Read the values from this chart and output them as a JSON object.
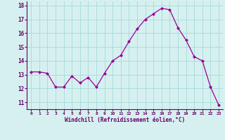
{
  "x": [
    0,
    1,
    2,
    3,
    4,
    5,
    6,
    7,
    8,
    9,
    10,
    11,
    12,
    13,
    14,
    15,
    16,
    17,
    18,
    19,
    20,
    21,
    22,
    23
  ],
  "y": [
    13.2,
    13.2,
    13.1,
    12.1,
    12.1,
    12.9,
    12.4,
    12.8,
    12.1,
    13.1,
    14.0,
    14.4,
    15.4,
    16.3,
    17.0,
    17.4,
    17.8,
    17.7,
    16.4,
    15.5,
    14.3,
    14.0,
    12.1,
    10.8
  ],
  "line_color": "#990099",
  "marker": "D",
  "marker_size": 2,
  "bg_color": "#d6f0f0",
  "grid_color": "#aadddd",
  "xlabel": "Windchill (Refroidissement éolien,°C)",
  "xlabel_color": "#660066",
  "tick_color": "#660066",
  "ylabel_ticks": [
    11,
    12,
    13,
    14,
    15,
    16,
    17,
    18
  ],
  "xlim": [
    -0.5,
    23.5
  ],
  "ylim": [
    10.5,
    18.3
  ],
  "xtick_labels": [
    "0",
    "1",
    "2",
    "3",
    "4",
    "5",
    "6",
    "7",
    "8",
    "9",
    "10",
    "11",
    "12",
    "13",
    "14",
    "15",
    "16",
    "17",
    "18",
    "19",
    "20",
    "21",
    "22",
    "23"
  ]
}
